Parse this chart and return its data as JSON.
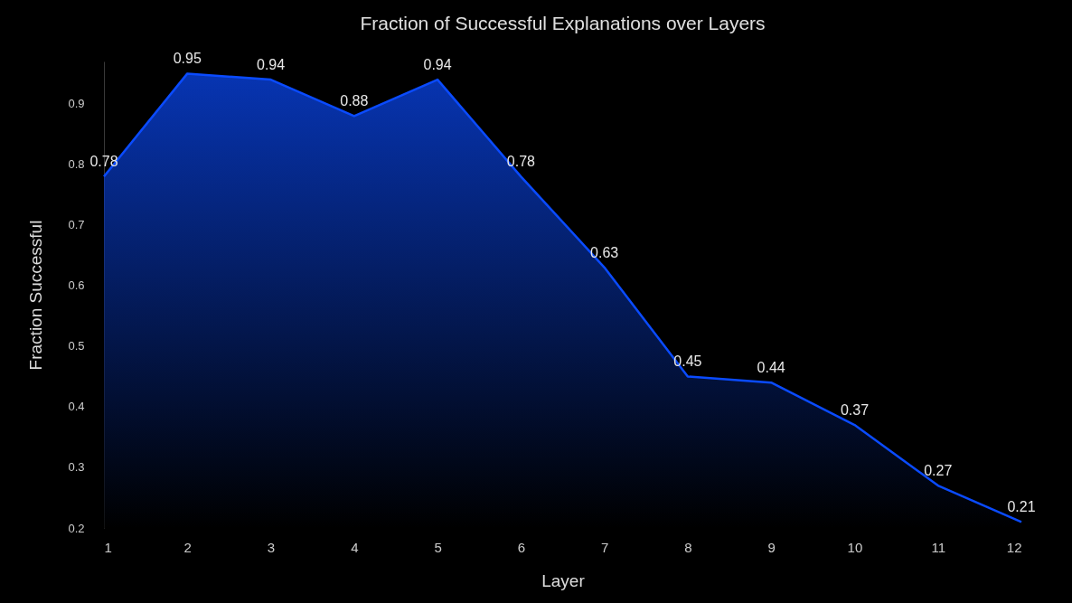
{
  "chart_data": {
    "type": "area",
    "title": "Fraction of Successful Explanations over Layers",
    "xlabel": "Layer",
    "ylabel": "Fraction Successful",
    "x": [
      1,
      2,
      3,
      4,
      5,
      6,
      7,
      8,
      9,
      10,
      11,
      12
    ],
    "series": [
      {
        "color": "#0a4bff",
        "values": [
          0.78,
          0.95,
          0.94,
          0.88,
          0.94,
          0.78,
          0.63,
          0.45,
          0.44,
          0.37,
          0.27,
          0.21
        ]
      }
    ],
    "xlim": [
      1,
      12
    ],
    "ylim": [
      0.2,
      0.97
    ],
    "xticks": [
      1,
      2,
      3,
      4,
      5,
      6,
      7,
      8,
      9,
      10,
      11,
      12
    ],
    "yticks": [
      0.2,
      0.3,
      0.4,
      0.5,
      0.6,
      0.7,
      0.8,
      0.9
    ],
    "data_labels": true,
    "grid": false
  }
}
